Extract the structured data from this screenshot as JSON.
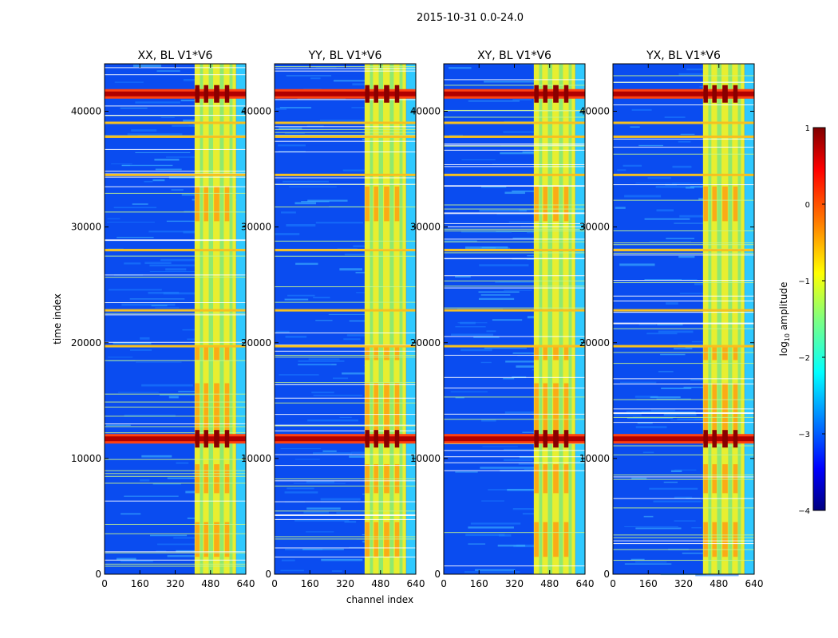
{
  "figure": {
    "suptitle": "2015-10-31 0.0-24.0",
    "xlabel": "channel index",
    "ylabel": "time index"
  },
  "chart_data": {
    "type": "heatmap",
    "x_range": [
      0,
      640
    ],
    "y_range": [
      0,
      44100
    ],
    "x_ticks": [
      0,
      160,
      320,
      480,
      640
    ],
    "y_ticks": [
      0,
      10000,
      20000,
      30000,
      40000
    ],
    "panels": [
      {
        "title": "XX, BL V1*V6"
      },
      {
        "title": "YY, BL V1*V6"
      },
      {
        "title": "XY, BL V1*V6"
      },
      {
        "title": "YX, BL V1*V6"
      }
    ],
    "features": {
      "strong_time_bands": [
        41500,
        11700
      ],
      "medium_time_bands": [
        34500,
        22800,
        19700,
        37800,
        39000,
        28000
      ],
      "rfi_channel_band": [
        408,
        596
      ],
      "hot_channel_blocks": [
        [
          410,
          430
        ],
        [
          450,
          470
        ],
        [
          496,
          520
        ],
        [
          545,
          565
        ]
      ],
      "edge_channel_band": [
        597,
        640
      ]
    },
    "colorbar": {
      "label": "log10 amplitude",
      "label_main": "log",
      "label_sub": "10",
      "label_rest": " amplitude",
      "range": [
        -4,
        1
      ],
      "ticks": [
        1,
        0,
        -1,
        -2,
        -3,
        -4
      ],
      "tick_labels": [
        "1",
        "0",
        "−1",
        "−2",
        "−3",
        "−4"
      ],
      "colormap": "jet"
    },
    "colors": {
      "jet": [
        "#00007f",
        "#0000ff",
        "#007fff",
        "#00ffff",
        "#7fff7f",
        "#ffff00",
        "#ff7f00",
        "#ff0000",
        "#7f0000"
      ]
    }
  }
}
